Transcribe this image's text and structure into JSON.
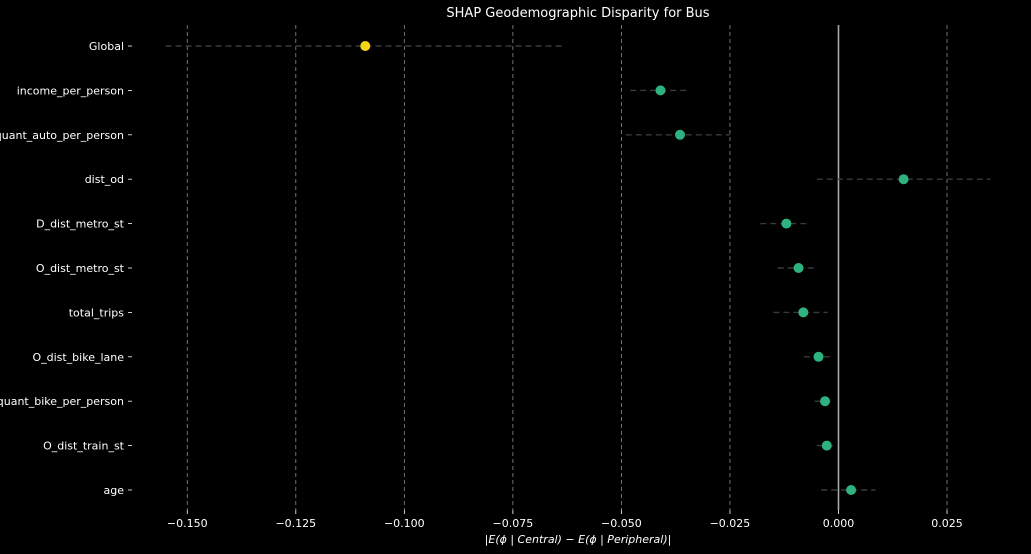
{
  "chart_data": {
    "type": "scatter",
    "title": "SHAP Geodemographic Disparity for Bus",
    "xlabel": "|E(ϕ | Central) − E(ϕ | Peripheral)|",
    "ylabel": "",
    "xlim": [
      -0.1625,
      0.0425
    ],
    "xticks": [
      -0.15,
      -0.125,
      -0.1,
      -0.075,
      -0.05,
      -0.025,
      0.0,
      0.025
    ],
    "xtick_labels": [
      "−0.150",
      "−0.125",
      "−0.100",
      "−0.075",
      "−0.050",
      "−0.025",
      "0.000",
      "0.025"
    ],
    "grid": "x-dashed",
    "zero_line": true,
    "categories": [
      "Global",
      "income_per_person",
      "quant_auto_per_person",
      "dist_od",
      "D_dist_metro_st",
      "O_dist_metro_st",
      "total_trips",
      "O_dist_bike_lane",
      "quant_bike_per_person",
      "O_dist_train_st",
      "age"
    ],
    "values": [
      -0.109,
      -0.041,
      -0.0365,
      0.015,
      -0.012,
      -0.0092,
      -0.0081,
      -0.0046,
      -0.0031,
      -0.0027,
      0.0029
    ],
    "ci_low": [
      -0.155,
      -0.048,
      -0.049,
      -0.005,
      -0.018,
      -0.014,
      -0.015,
      -0.008,
      -0.0055,
      -0.005,
      -0.004
    ],
    "ci_high": [
      -0.063,
      -0.0345,
      -0.025,
      0.035,
      -0.0065,
      -0.0055,
      -0.0025,
      -0.002,
      -0.001,
      -0.0005,
      0.0085
    ],
    "colors": {
      "global": "#f5d614",
      "feature": "#2eb27f",
      "ci_line": "#3a3a3a",
      "grid": "#8c8c8c",
      "zero_line": "#a9a9a9",
      "text": "#ffffff",
      "background": "#000000"
    }
  }
}
